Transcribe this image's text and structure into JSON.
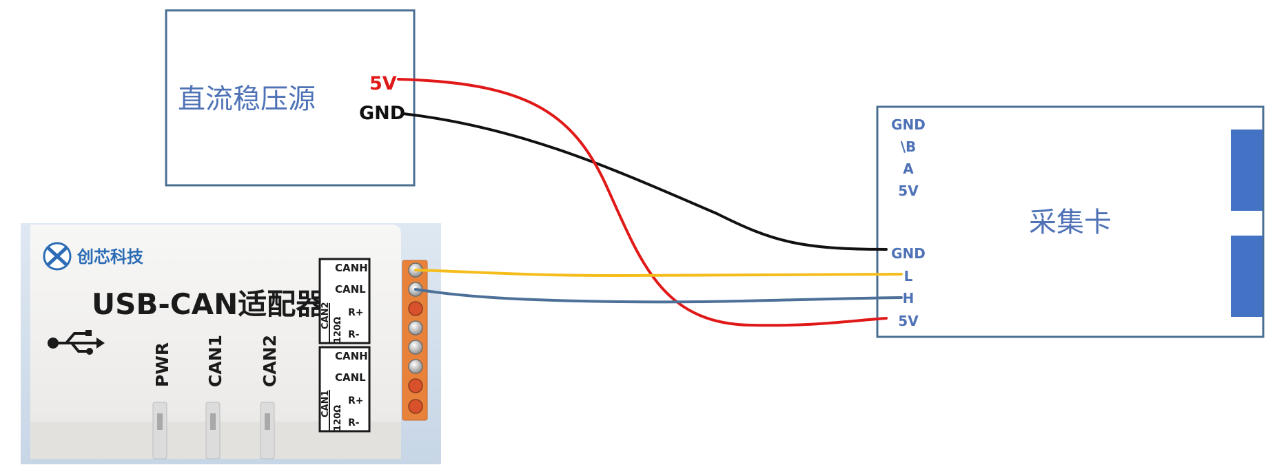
{
  "power_supply": {
    "title": "直流稳压源",
    "terminal_5v": "5V",
    "terminal_gnd": "GND"
  },
  "adapter": {
    "brand": "创芯科技",
    "title": "USB-CAN适配器",
    "leds": [
      "PWR",
      "CAN1",
      "CAN2"
    ],
    "block_can2": {
      "label": "CAN2",
      "canh": "CANH",
      "canl": "CANL",
      "res": "120Ω",
      "rplus": "R+",
      "rminus": "R-"
    },
    "block_can1": {
      "label": "CAN1",
      "canh": "CANH",
      "canl": "CANL",
      "res": "120Ω",
      "rplus": "R+",
      "rminus": "R-"
    }
  },
  "card": {
    "title": "采集卡",
    "top_pins": [
      "GND",
      "\\B",
      "A",
      "5V"
    ],
    "bottom_pins": [
      "GND",
      "L",
      "H",
      "5V"
    ]
  },
  "colors": {
    "box_stroke": "#4a6f93",
    "label_blue": "#4f72b6",
    "wire_red": "#e01818",
    "wire_black": "#111111",
    "wire_yellow": "#f5bd1c",
    "wire_blue": "#4d7099",
    "connector": "#e8823a"
  }
}
